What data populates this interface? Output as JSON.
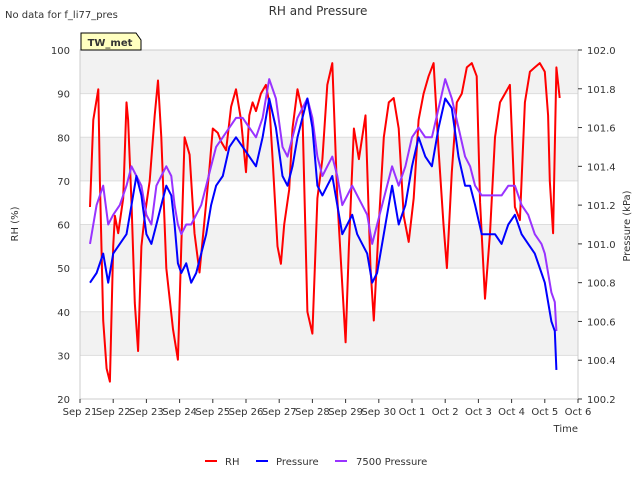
{
  "chart_data": {
    "type": "line",
    "title": "RH and Pressure",
    "no_data_note": "No data for f_li77_pres",
    "station_badge": "TW_met",
    "xlabel": "Time",
    "ylabel_left": "RH (%)",
    "ylabel_right": "Pressure (kPa)",
    "x_ticks": [
      "Sep 21",
      "Sep 22",
      "Sep 23",
      "Sep 24",
      "Sep 25",
      "Sep 26",
      "Sep 27",
      "Sep 28",
      "Sep 29",
      "Sep 30",
      "Oct 1",
      "Oct 2",
      "Oct 3",
      "Oct 4",
      "Oct 5",
      "Oct 6"
    ],
    "xlim_days": [
      0,
      15
    ],
    "ylim_left": [
      20,
      100
    ],
    "y_ticks_left": [
      20,
      30,
      40,
      50,
      60,
      70,
      80,
      90,
      100
    ],
    "ylim_right": [
      100.2,
      102.0
    ],
    "y_ticks_right": [
      "100.2",
      "100.4",
      "100.6",
      "100.8",
      "101.0",
      "101.2",
      "101.4",
      "101.6",
      "101.8",
      "102.0"
    ],
    "legend": [
      "RH",
      "Pressure",
      "7500 Pressure"
    ],
    "series": [
      {
        "name": "RH",
        "axis": "left",
        "color": "#ff0000",
        "x": [
          0.3,
          0.4,
          0.55,
          0.6,
          0.7,
          0.8,
          0.9,
          1.0,
          1.05,
          1.15,
          1.3,
          1.4,
          1.45,
          1.55,
          1.65,
          1.75,
          1.85,
          1.95,
          2.1,
          2.25,
          2.35,
          2.45,
          2.6,
          2.8,
          2.95,
          3.05,
          3.15,
          3.3,
          3.45,
          3.6,
          3.75,
          3.9,
          4.0,
          4.15,
          4.25,
          4.4,
          4.55,
          4.7,
          4.85,
          5.0,
          5.1,
          5.2,
          5.3,
          5.45,
          5.6,
          5.7,
          5.8,
          5.95,
          6.05,
          6.15,
          6.3,
          6.4,
          6.55,
          6.7,
          6.85,
          7.0,
          7.15,
          7.3,
          7.45,
          7.6,
          7.75,
          7.9,
          8.0,
          8.1,
          8.25,
          8.4,
          8.5,
          8.6,
          8.75,
          8.85,
          9.0,
          9.15,
          9.3,
          9.45,
          9.6,
          9.75,
          9.9,
          10.05,
          10.2,
          10.35,
          10.5,
          10.65,
          10.8,
          10.95,
          11.05,
          11.2,
          11.35,
          11.5,
          11.65,
          11.8,
          11.95,
          12.05,
          12.2,
          12.35,
          12.5,
          12.65,
          12.8,
          12.95,
          13.1,
          13.25,
          13.4,
          13.55,
          13.7,
          13.85,
          14.0,
          14.1,
          14.15,
          14.25,
          14.35,
          14.45
        ],
        "values": [
          64,
          84,
          91,
          70,
          38,
          27,
          24,
          55,
          62,
          58,
          66,
          88,
          84,
          65,
          42,
          31,
          55,
          62,
          70,
          85,
          93,
          80,
          50,
          36,
          29,
          55,
          80,
          76,
          58,
          49,
          61,
          73,
          82,
          81,
          79,
          77,
          87,
          91,
          84,
          72,
          85,
          88,
          86,
          90,
          92,
          88,
          75,
          55,
          51,
          60,
          68,
          82,
          91,
          86,
          40,
          35,
          66,
          75,
          92,
          97,
          66,
          46,
          33,
          55,
          82,
          75,
          80,
          85,
          50,
          38,
          60,
          80,
          88,
          89,
          82,
          62,
          56,
          66,
          84,
          90,
          94,
          97,
          77,
          60,
          50,
          72,
          88,
          90,
          96,
          97,
          94,
          65,
          43,
          58,
          80,
          88,
          90,
          92,
          64,
          61,
          88,
          95,
          96,
          97,
          95,
          85,
          70,
          58,
          96,
          89
        ]
      },
      {
        "name": "Pressure",
        "axis": "right",
        "color": "#0000ff",
        "x": [
          0.3,
          0.5,
          0.7,
          0.85,
          1.0,
          1.2,
          1.4,
          1.55,
          1.7,
          1.85,
          2.0,
          2.15,
          2.3,
          2.45,
          2.6,
          2.75,
          2.85,
          2.95,
          3.05,
          3.2,
          3.35,
          3.5,
          3.65,
          3.8,
          3.95,
          4.1,
          4.3,
          4.5,
          4.7,
          4.9,
          5.1,
          5.3,
          5.5,
          5.7,
          5.9,
          6.1,
          6.25,
          6.4,
          6.55,
          6.7,
          6.85,
          7.0,
          7.15,
          7.3,
          7.45,
          7.6,
          7.75,
          7.9,
          8.05,
          8.2,
          8.35,
          8.5,
          8.65,
          8.8,
          8.95,
          9.1,
          9.25,
          9.4,
          9.6,
          9.8,
          10.0,
          10.2,
          10.4,
          10.6,
          10.8,
          11.0,
          11.2,
          11.4,
          11.6,
          11.75,
          11.9,
          12.1,
          12.3,
          12.5,
          12.7,
          12.9,
          13.1,
          13.3,
          13.5,
          13.7,
          13.9,
          14.0,
          14.1,
          14.2,
          14.3,
          14.35
        ],
        "values": [
          100.8,
          100.85,
          100.95,
          100.8,
          100.95,
          101.0,
          101.05,
          101.2,
          101.35,
          101.25,
          101.05,
          101.0,
          101.1,
          101.2,
          101.3,
          101.25,
          101.1,
          100.9,
          100.85,
          100.9,
          100.8,
          100.85,
          100.95,
          101.05,
          101.2,
          101.3,
          101.35,
          101.5,
          101.55,
          101.5,
          101.45,
          101.4,
          101.55,
          101.75,
          101.6,
          101.35,
          101.3,
          101.4,
          101.55,
          101.65,
          101.75,
          101.6,
          101.3,
          101.25,
          101.3,
          101.35,
          101.2,
          101.05,
          101.1,
          101.15,
          101.05,
          101.0,
          100.95,
          100.8,
          100.85,
          101.0,
          101.15,
          101.3,
          101.1,
          101.2,
          101.4,
          101.55,
          101.45,
          101.4,
          101.6,
          101.75,
          101.7,
          101.45,
          101.3,
          101.3,
          101.2,
          101.05,
          101.05,
          101.05,
          101.0,
          101.1,
          101.15,
          101.05,
          101.0,
          100.95,
          100.85,
          100.8,
          100.7,
          100.6,
          100.55,
          100.35
        ]
      },
      {
        "name": "7500 Pressure",
        "axis": "right",
        "color": "#9933ff",
        "x": [
          0.3,
          0.5,
          0.7,
          0.85,
          1.0,
          1.2,
          1.4,
          1.55,
          1.7,
          1.85,
          2.0,
          2.15,
          2.3,
          2.45,
          2.6,
          2.75,
          2.85,
          2.95,
          3.05,
          3.2,
          3.35,
          3.5,
          3.65,
          3.8,
          3.95,
          4.1,
          4.3,
          4.5,
          4.7,
          4.9,
          5.1,
          5.3,
          5.5,
          5.7,
          5.9,
          6.1,
          6.25,
          6.4,
          6.55,
          6.7,
          6.85,
          7.0,
          7.15,
          7.3,
          7.45,
          7.6,
          7.75,
          7.9,
          8.05,
          8.2,
          8.35,
          8.5,
          8.65,
          8.8,
          8.95,
          9.1,
          9.25,
          9.4,
          9.6,
          9.8,
          10.0,
          10.2,
          10.4,
          10.6,
          10.8,
          11.0,
          11.2,
          11.4,
          11.6,
          11.75,
          11.9,
          12.1,
          12.3,
          12.5,
          12.7,
          12.9,
          13.1,
          13.3,
          13.5,
          13.7,
          13.9,
          14.0,
          14.1,
          14.2,
          14.3,
          14.35
        ],
        "values": [
          101.0,
          101.2,
          101.3,
          101.1,
          101.15,
          101.2,
          101.3,
          101.4,
          101.35,
          101.3,
          101.15,
          101.1,
          101.3,
          101.35,
          101.4,
          101.35,
          101.2,
          101.1,
          101.05,
          101.1,
          101.1,
          101.15,
          101.2,
          101.3,
          101.4,
          101.5,
          101.55,
          101.6,
          101.65,
          101.65,
          101.6,
          101.55,
          101.65,
          101.85,
          101.75,
          101.5,
          101.45,
          101.55,
          101.65,
          101.7,
          101.75,
          101.65,
          101.45,
          101.35,
          101.4,
          101.45,
          101.35,
          101.2,
          101.25,
          101.3,
          101.25,
          101.2,
          101.15,
          101.0,
          101.1,
          101.2,
          101.3,
          101.4,
          101.3,
          101.4,
          101.55,
          101.6,
          101.55,
          101.55,
          101.7,
          101.85,
          101.75,
          101.6,
          101.45,
          101.4,
          101.3,
          101.25,
          101.25,
          101.25,
          101.25,
          101.3,
          101.3,
          101.2,
          101.15,
          101.05,
          101.0,
          100.95,
          100.85,
          100.75,
          100.7,
          100.55
        ]
      }
    ]
  }
}
